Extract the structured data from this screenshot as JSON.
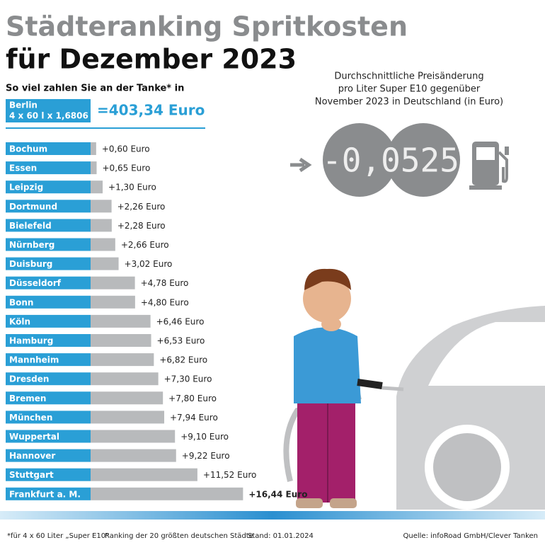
{
  "chart_data": {
    "type": "bar",
    "title": "Städteranking Spritkosten",
    "subtitle": "für Dezember 2023",
    "lead": "So viel zahlen Sie an der Tanke* in",
    "reference": {
      "city": "Berlin",
      "formula": "4 x 60 l x 1,6806 €",
      "total": "=403,34 Euro"
    },
    "annotation": [
      "Durchschnittliche Preisänderung",
      "pro Liter Super E10 gegenüber",
      "November 2023 in Deutschland (in Euro)"
    ],
    "price_change": "-0,0525",
    "categories": [
      "Bochum",
      "Essen",
      "Leipzig",
      "Dortmund",
      "Bielefeld",
      "Nürnberg",
      "Duisburg",
      "Düsseldorf",
      "Bonn",
      "Köln",
      "Hamburg",
      "Mannheim",
      "Dresden",
      "Bremen",
      "München",
      "Wuppertal",
      "Hannover",
      "Stuttgart",
      "Frankfurt a. M."
    ],
    "values": [
      0.6,
      0.65,
      1.3,
      2.26,
      2.28,
      2.66,
      3.02,
      4.78,
      4.8,
      6.46,
      6.53,
      6.82,
      7.3,
      7.8,
      7.94,
      9.1,
      9.22,
      11.52,
      16.44
    ],
    "value_labels": [
      "+0,60 Euro",
      "+0,65 Euro",
      "+1,30 Euro",
      "+2,26 Euro",
      "+2,28 Euro",
      "+2,66 Euro",
      "+3,02 Euro",
      "+4,78 Euro",
      "+4,80 Euro",
      "+6,46 Euro",
      "+6,53 Euro",
      "+6,82 Euro",
      "+7,30 Euro",
      "+7,80 Euro",
      "+7,94 Euro",
      "+9,10 Euro",
      "+9,22 Euro",
      "+11,52 Euro",
      "+16,44 Euro"
    ],
    "color": "#b8babc",
    "label_color": "#2a9fd6",
    "footer": [
      "*für 4 x 60 Liter „Super E10“",
      "Ranking der 20 größten deutschen Städte",
      "Stand: 01.01.2024",
      "Quelle: infoRoad GmbH/Clever Tanken"
    ]
  }
}
